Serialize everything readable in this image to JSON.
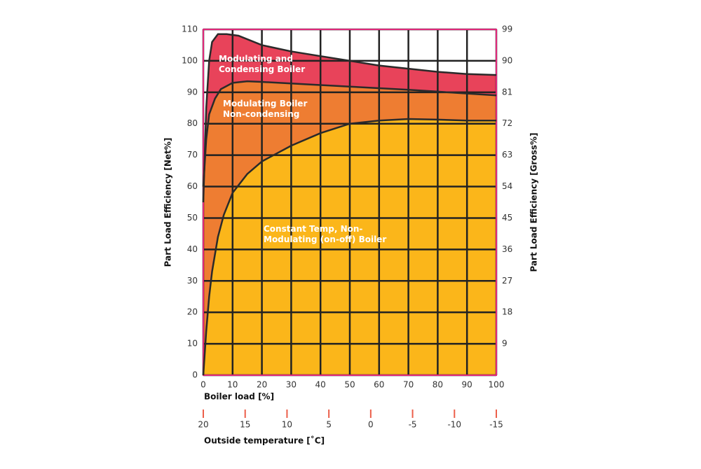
{
  "chart_data": {
    "type": "area",
    "xlabel": "Boiler load [%]",
    "ylabel": "Part Load Efficiency [Net%]",
    "y2label": "Part Load Efficiency [Gross%]",
    "x2label": "Outside temperature [˚C]",
    "xlim": [
      0,
      100
    ],
    "xticks": [
      0,
      10,
      20,
      30,
      40,
      50,
      60,
      70,
      80,
      90,
      100
    ],
    "ylim": [
      0,
      110
    ],
    "yticks": [
      0,
      10,
      20,
      30,
      40,
      50,
      60,
      70,
      80,
      90,
      100,
      110
    ],
    "y2lim": [
      0,
      99
    ],
    "y2ticks": [
      9,
      18,
      27,
      36,
      45,
      54,
      63,
      72,
      81,
      90,
      99
    ],
    "x2lim": [
      20,
      -15
    ],
    "x2ticks": [
      20,
      15,
      10,
      5,
      0,
      -5,
      -10,
      -15
    ],
    "grid": true,
    "series": [
      {
        "name": "Modulating and Condensing Boiler",
        "color": "#e8435a",
        "x": [
          0,
          1,
          2,
          3,
          5,
          8,
          12,
          20,
          30,
          40,
          50,
          60,
          70,
          80,
          90,
          100
        ],
        "values": [
          55,
          85,
          100,
          106,
          108.5,
          108.5,
          108,
          105,
          103,
          101.5,
          100,
          98.5,
          97.5,
          96.5,
          95.8,
          95.5
        ]
      },
      {
        "name": "Modulating Boiler Non-condensing",
        "color": "#ee7d32",
        "x": [
          0,
          1,
          2,
          4,
          6,
          10,
          15,
          20,
          30,
          40,
          50,
          60,
          70,
          80,
          90,
          100
        ],
        "values": [
          60,
          75,
          83,
          88,
          91,
          93,
          93.5,
          93.3,
          92.8,
          92.3,
          91.8,
          91.3,
          90.8,
          90.2,
          89.6,
          89
        ]
      },
      {
        "name": "Constant Temp, Non-Modulating (on-off) Boiler",
        "color": "#fbb61a",
        "x": [
          0,
          1,
          2,
          3,
          5,
          7,
          10,
          15,
          20,
          30,
          40,
          50,
          60,
          70,
          80,
          90,
          100
        ],
        "values": [
          0,
          14,
          25,
          33,
          44,
          51,
          58,
          64,
          68,
          73,
          77,
          80,
          81,
          81.5,
          81.3,
          81,
          81
        ]
      }
    ]
  }
}
